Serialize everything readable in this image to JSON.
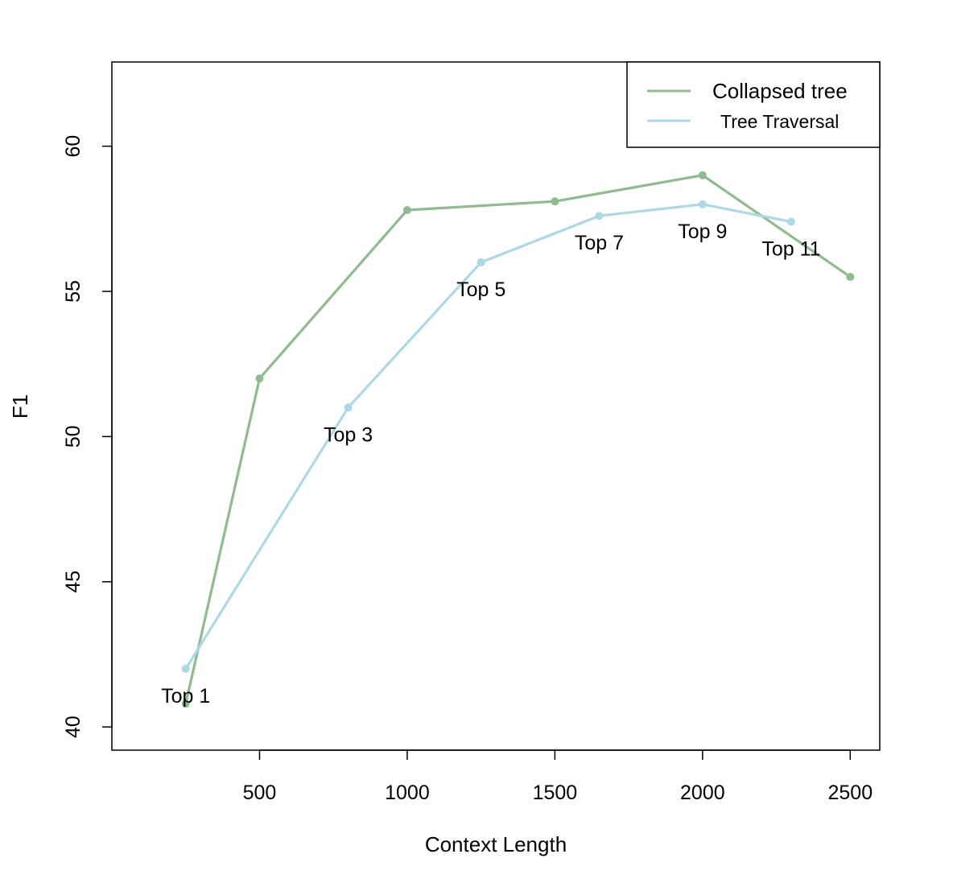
{
  "chart_data": {
    "type": "line",
    "title": "",
    "xlabel": "Context Length",
    "ylabel": "F1",
    "xlim": [
      0,
      2600
    ],
    "ylim": [
      39.2,
      62.9
    ],
    "x_ticks": [
      500,
      1000,
      1500,
      2000,
      2500
    ],
    "y_ticks": [
      40,
      45,
      50,
      55,
      60
    ],
    "grid": false,
    "legend_position": "top-right",
    "series": [
      {
        "name": "Collapsed tree",
        "color": "#8fbc8f",
        "x": [
          250,
          500,
          1000,
          1500,
          2000,
          2500
        ],
        "y": [
          40.8,
          52,
          57.8,
          58.1,
          59,
          55.5
        ]
      },
      {
        "name": "Tree Traversal",
        "color": "#add8e6",
        "x": [
          250,
          800,
          1250,
          1650,
          2000,
          2300
        ],
        "y": [
          42,
          51,
          56,
          57.6,
          58,
          57.4
        ],
        "point_labels": [
          "Top 1",
          "Top 3",
          "Top 5",
          "Top 7",
          "Top 9",
          "Top 11"
        ]
      }
    ]
  }
}
